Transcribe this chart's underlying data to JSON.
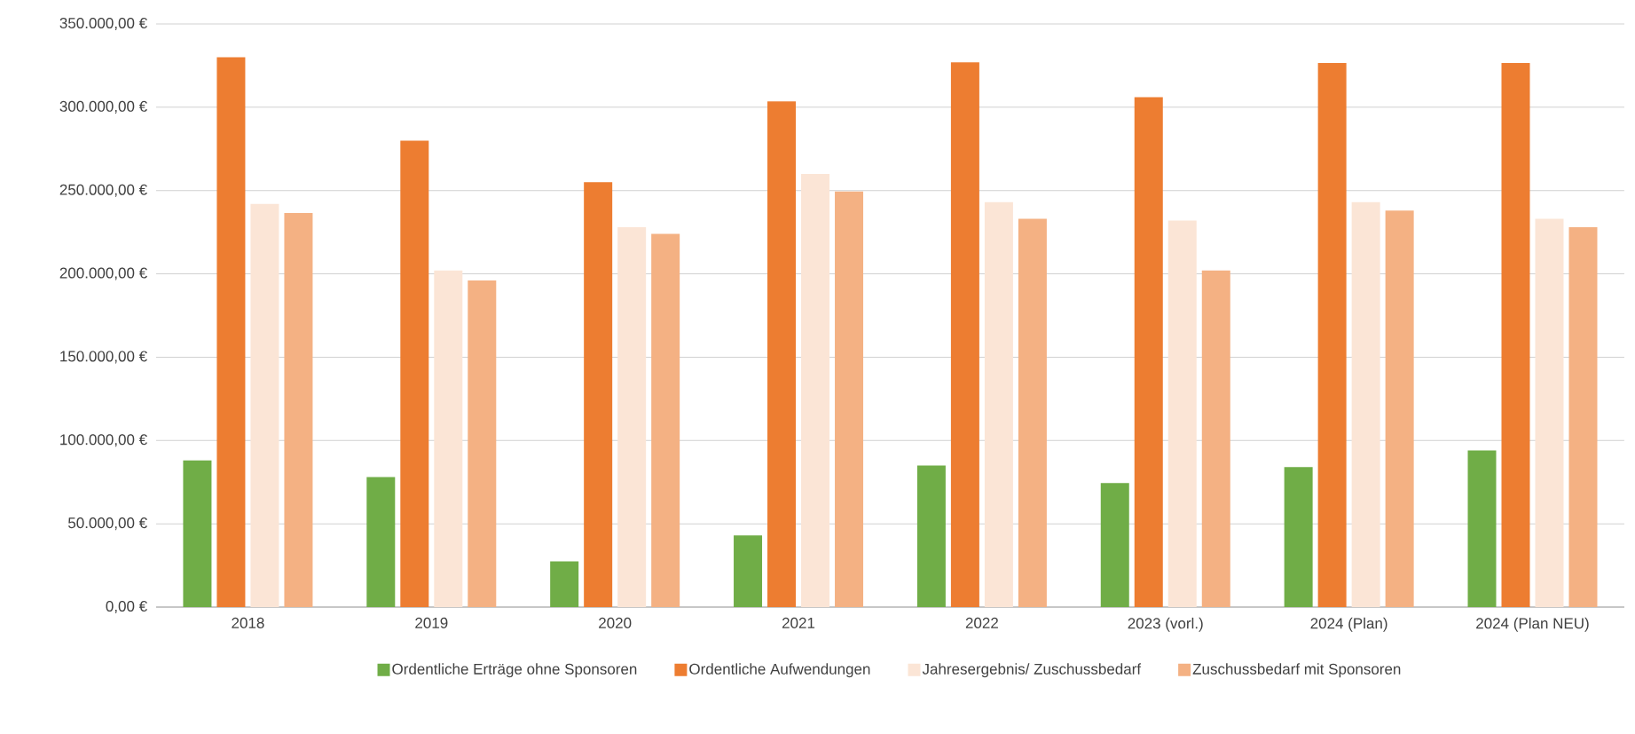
{
  "chart_data": {
    "type": "bar",
    "categories": [
      "2018",
      "2019",
      "2020",
      "2021",
      "2022",
      "2023 (vorl.)",
      "2024 (Plan)",
      "2024 (Plan NEU)"
    ],
    "series": [
      {
        "name": "Ordentliche Erträge ohne Sponsoren",
        "color": "#70ad47",
        "values": [
          88000,
          78000,
          27500,
          43000,
          85000,
          74500,
          84000,
          94000
        ]
      },
      {
        "name": "Ordentliche Aufwendungen",
        "color": "#ed7d31",
        "values": [
          330000,
          280000,
          255000,
          303500,
          327000,
          306000,
          326500,
          326500
        ]
      },
      {
        "name": "Jahresergebnis/ Zuschussbedarf",
        "color": "#fbe5d6",
        "values": [
          242000,
          202000,
          228000,
          260000,
          243000,
          232000,
          243000,
          233000
        ]
      },
      {
        "name": "Zuschussbedarf mit Sponsoren",
        "color": "#f4b183",
        "values": [
          236500,
          196000,
          224000,
          249500,
          233000,
          202000,
          238000,
          228000
        ]
      }
    ],
    "ylim": [
      0,
      350000
    ],
    "yticks": [
      {
        "value": 0,
        "label": "0,00 €"
      },
      {
        "value": 50000,
        "label": "50.000,00 €"
      },
      {
        "value": 100000,
        "label": "100.000,00 €"
      },
      {
        "value": 150000,
        "label": "150.000,00 €"
      },
      {
        "value": 200000,
        "label": "200.000,00 €"
      },
      {
        "value": 250000,
        "label": "250.000,00 €"
      },
      {
        "value": 300000,
        "label": "300.000,00 €"
      },
      {
        "value": 350000,
        "label": "350.000,00 €"
      }
    ],
    "grid": "y",
    "legend": "bottom"
  }
}
